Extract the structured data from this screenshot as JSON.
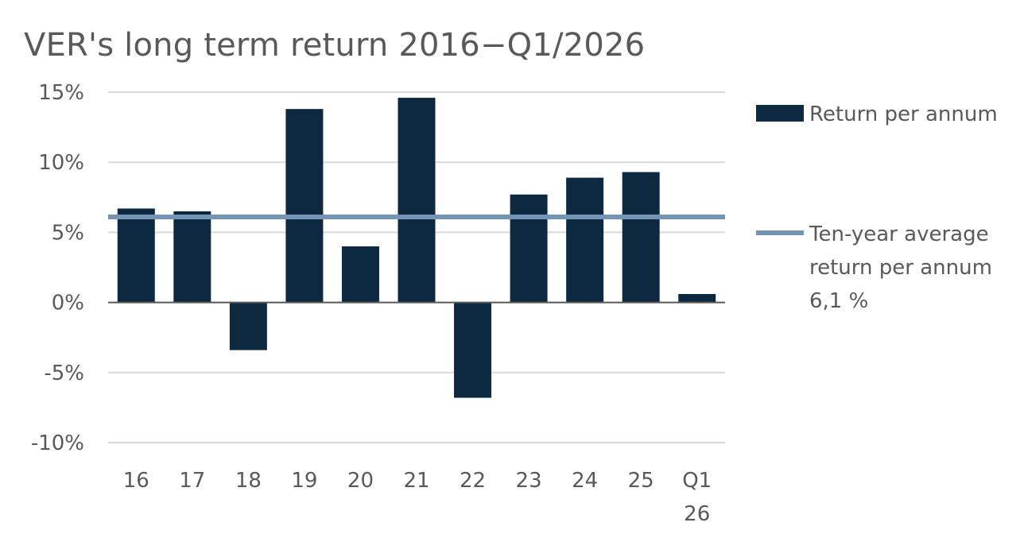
{
  "chart_data": {
    "type": "bar",
    "title": "VER's long term return 2016−Q1/2026",
    "categories": [
      [
        "16"
      ],
      [
        "17"
      ],
      [
        "18"
      ],
      [
        "19"
      ],
      [
        "20"
      ],
      [
        "21"
      ],
      [
        "22"
      ],
      [
        "23"
      ],
      [
        "24"
      ],
      [
        "25"
      ],
      [
        "Q1",
        "26"
      ]
    ],
    "series": [
      {
        "name": "Return per annum",
        "type": "bar",
        "color": "#0d2940",
        "values": [
          6.7,
          6.5,
          -3.4,
          13.8,
          4.0,
          14.6,
          -6.8,
          7.7,
          8.9,
          9.3,
          0.6
        ]
      },
      {
        "name": [
          "Ten-year average",
          "return per annum",
          "6,1 %"
        ],
        "type": "line",
        "color": "#7394b5",
        "value": 6.1
      }
    ],
    "yticks": [
      15,
      10,
      5,
      0,
      -5,
      -10
    ],
    "ytick_labels": [
      "15%",
      "10%",
      "5%",
      "0%",
      "-5%",
      "-10%"
    ],
    "ylim": [
      -10,
      15
    ],
    "grid": true,
    "legend_position": "right"
  }
}
